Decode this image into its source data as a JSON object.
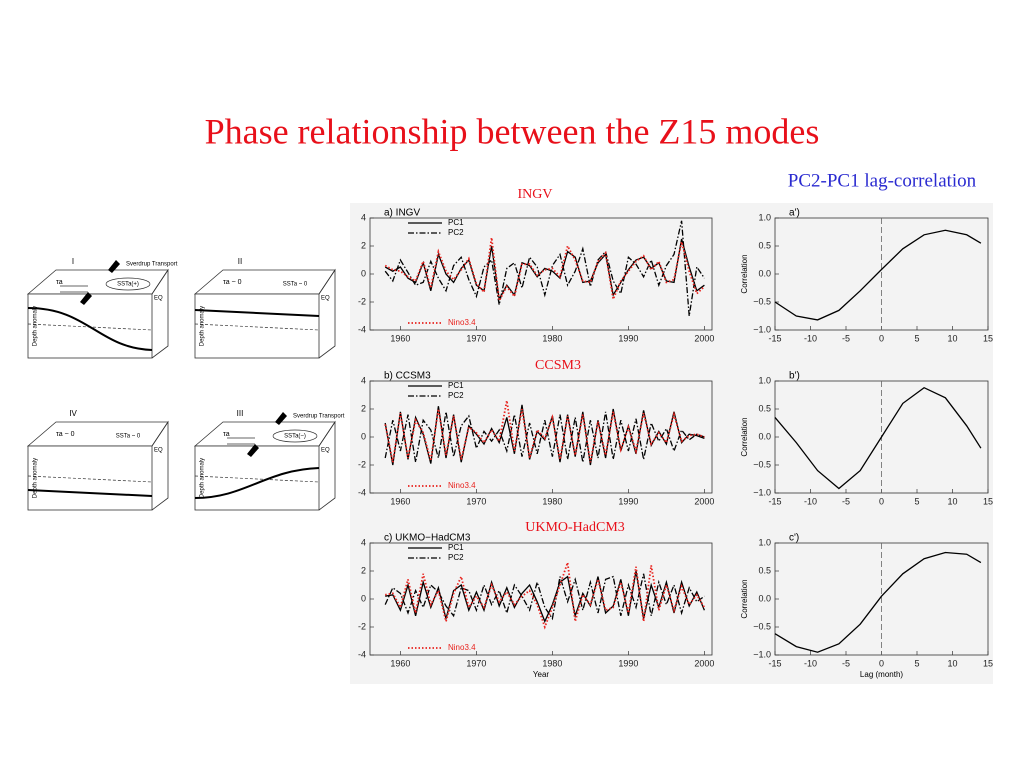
{
  "title": "Phase relationship between the Z15 modes",
  "subtitle": "PC2-PC1 lag-correlation",
  "models": [
    "INGV",
    "CCSM3",
    "UKMO-HadCM3"
  ],
  "diagrams": [
    {
      "label": "I",
      "wind": "τa",
      "sst": "SSTa(+)",
      "transport": "Sverdrup Transport",
      "eq": "EQ",
      "ylabel": "Depth anomaly"
    },
    {
      "label": "II",
      "wind": "τa ~ 0",
      "sst": "SSTa ~ 0",
      "eq": "EQ",
      "ylabel": "Depth anomaly"
    },
    {
      "label": "III",
      "wind": "τa",
      "sst": "SSTa(−)",
      "transport": "Sverdrup Transport",
      "eq": "EQ",
      "ylabel": "Depth anomaly"
    },
    {
      "label": "IV",
      "wind": "τa ~ 0",
      "sst": "SSTa ~ 0",
      "eq": "EQ",
      "ylabel": "Depth anomaly"
    }
  ],
  "chart_data": [
    {
      "type": "line",
      "title": "a) INGV",
      "xlim": [
        1956,
        2001
      ],
      "xticks": [
        1960,
        1970,
        1980,
        1990,
        2000
      ],
      "ylim": [
        -4,
        4
      ],
      "yticks": [
        -4,
        -2,
        0,
        2,
        4
      ],
      "x": [
        1958,
        1959,
        1960,
        1961,
        1962,
        1963,
        1964,
        1965,
        1966,
        1967,
        1968,
        1969,
        1970,
        1971,
        1972,
        1973,
        1974,
        1975,
        1976,
        1977,
        1978,
        1979,
        1980,
        1981,
        1982,
        1983,
        1984,
        1985,
        1986,
        1987,
        1988,
        1989,
        1990,
        1991,
        1992,
        1993,
        1994,
        1995,
        1996,
        1997,
        1998,
        1999,
        2000
      ],
      "series": [
        {
          "name": "PC1",
          "color": "#000000",
          "style": "solid",
          "values": [
            0.5,
            0.2,
            0.5,
            -0.3,
            -0.6,
            0.8,
            -1.2,
            1.4,
            0.0,
            -0.6,
            0.4,
            1.0,
            -0.8,
            -1.2,
            2.0,
            -1.8,
            -0.8,
            -1.5,
            0.8,
            0.6,
            -0.2,
            0.4,
            0.2,
            -0.3,
            1.6,
            1.2,
            -0.6,
            -0.5,
            0.8,
            1.4,
            -1.5,
            -0.6,
            0.3,
            1.0,
            1.2,
            0.4,
            0.8,
            -0.5,
            -0.6,
            2.5,
            0.5,
            -1.2,
            -0.8
          ]
        },
        {
          "name": "PC2",
          "color": "#000000",
          "style": "dashdot",
          "values": [
            0.2,
            -0.5,
            1.0,
            0.1,
            -0.8,
            -0.6,
            0.9,
            -0.3,
            -1.2,
            0.6,
            1.2,
            -0.4,
            -1.6,
            0.5,
            1.0,
            -2.2,
            0.4,
            0.8,
            -1.0,
            1.2,
            0.5,
            -1.5,
            0.6,
            1.4,
            -0.8,
            0.2,
            1.8,
            -0.9,
            1.0,
            1.6,
            -0.5,
            -1.4,
            1.2,
            0.7,
            -0.2,
            1.0,
            -0.8,
            0.6,
            1.4,
            3.8,
            -3.0,
            0.5,
            -0.3
          ]
        },
        {
          "name": "Nino3.4",
          "color": "#e8231e",
          "style": "dotted",
          "values": [
            0.6,
            0.3,
            0.2,
            -0.2,
            -0.5,
            0.9,
            -1.0,
            1.6,
            0.2,
            -0.4,
            0.3,
            1.1,
            -0.7,
            -1.3,
            2.6,
            -1.9,
            -0.9,
            -1.6,
            0.7,
            0.7,
            -0.1,
            0.3,
            0.4,
            -0.2,
            2.0,
            1.0,
            -0.5,
            -0.6,
            0.9,
            1.5,
            -1.8,
            -0.5,
            0.2,
            0.9,
            1.3,
            0.3,
            0.9,
            -0.6,
            -0.4,
            2.3,
            0.2,
            -1.4,
            -0.9
          ]
        }
      ]
    },
    {
      "type": "line",
      "title": "a')",
      "ylabel": "Correlation",
      "xlim": [
        -15,
        15
      ],
      "xticks": [
        -15,
        -10,
        -5,
        0,
        5,
        10,
        15
      ],
      "ylim": [
        -1,
        1
      ],
      "yticks": [
        {
          "value": -1,
          "label": "−1.0"
        },
        {
          "value": -0.5,
          "label": "−0.5"
        },
        {
          "value": 0,
          "label": "0.0"
        },
        0.5,
        {
          "value": 1,
          "label": "1.0"
        }
      ],
      "vline": 0,
      "x": [
        -15,
        -12,
        -9,
        -6,
        -3,
        0,
        3,
        6,
        9,
        12,
        14
      ],
      "series": [
        {
          "color": "#000000",
          "style": "solid",
          "values": [
            -0.5,
            -0.75,
            -0.82,
            -0.65,
            -0.3,
            0.08,
            0.45,
            0.7,
            0.78,
            0.7,
            0.55
          ]
        }
      ]
    },
    {
      "type": "line",
      "title": "b) CCSM3",
      "xlim": [
        1956,
        2001
      ],
      "xticks": [
        1960,
        1970,
        1980,
        1990,
        2000
      ],
      "ylim": [
        -4,
        4
      ],
      "yticks": [
        -4,
        -2,
        0,
        2,
        4
      ],
      "x": [
        1958,
        1959,
        1960,
        1961,
        1962,
        1963,
        1964,
        1965,
        1966,
        1967,
        1968,
        1969,
        1970,
        1971,
        1972,
        1973,
        1974,
        1975,
        1976,
        1977,
        1978,
        1979,
        1980,
        1981,
        1982,
        1983,
        1984,
        1985,
        1986,
        1987,
        1988,
        1989,
        1990,
        1991,
        1992,
        1993,
        1994,
        1995,
        1996,
        1997,
        1998,
        1999,
        2000
      ],
      "series": [
        {
          "name": "PC1",
          "color": "#000000",
          "style": "solid",
          "values": [
            1.0,
            -2.0,
            1.8,
            -1.6,
            1.4,
            0.2,
            -1.9,
            2.2,
            -1.5,
            1.6,
            -1.8,
            0.8,
            0.2,
            -0.5,
            0.6,
            -0.4,
            1.4,
            -1.2,
            2.3,
            -1.6,
            0.4,
            -0.2,
            1.5,
            -1.8,
            1.6,
            -1.4,
            1.8,
            -2.0,
            1.2,
            -1.5,
            2.0,
            -1.0,
            0.8,
            -1.2,
            1.9,
            -0.6,
            0.4,
            -0.5,
            1.8,
            -0.4,
            0.2,
            0.1,
            -0.1
          ]
        },
        {
          "name": "PC2",
          "color": "#000000",
          "style": "dashdot",
          "values": [
            -1.5,
            1.2,
            -1.0,
            1.6,
            -1.8,
            1.2,
            0.5,
            -1.5,
            1.8,
            -1.4,
            0.8,
            1.5,
            -0.8,
            0.4,
            -0.3,
            0.5,
            -1.0,
            1.6,
            -1.4,
            1.0,
            -1.2,
            1.2,
            -1.4,
            1.6,
            -1.6,
            1.4,
            -1.8,
            1.2,
            -1.5,
            1.8,
            -1.6,
            1.2,
            -1.0,
            1.3,
            -1.6,
            1.0,
            -0.3,
            0.6,
            -1.0,
            0.5,
            -0.2,
            0.2,
            0.0
          ]
        },
        {
          "name": "Nino3.4",
          "color": "#e8231e",
          "style": "dotted",
          "values": [
            0.9,
            -1.8,
            1.7,
            -1.5,
            1.2,
            0.3,
            -1.7,
            2.0,
            -1.3,
            1.5,
            -1.6,
            0.7,
            0.3,
            -0.4,
            0.5,
            -0.3,
            2.6,
            -1.0,
            2.0,
            -1.5,
            0.5,
            -0.1,
            1.4,
            -1.6,
            1.5,
            -1.3,
            1.6,
            -1.8,
            1.1,
            -1.3,
            1.8,
            -0.9,
            0.7,
            -1.0,
            1.7,
            -0.5,
            0.3,
            -0.4,
            1.6,
            -0.3,
            0.1,
            0.2,
            0.0
          ]
        }
      ]
    },
    {
      "type": "line",
      "title": "b')",
      "ylabel": "Correlation",
      "xlim": [
        -15,
        15
      ],
      "xticks": [
        -15,
        -10,
        -5,
        0,
        5,
        10,
        15
      ],
      "ylim": [
        -1,
        1
      ],
      "yticks": [
        {
          "value": -1,
          "label": "−1.0"
        },
        {
          "value": -0.5,
          "label": "−0.5"
        },
        {
          "value": 0,
          "label": "0.0"
        },
        0.5,
        {
          "value": 1,
          "label": "1.0"
        }
      ],
      "vline": 0,
      "x": [
        -15,
        -12,
        -9,
        -6,
        -3,
        0,
        3,
        6,
        9,
        12,
        14
      ],
      "series": [
        {
          "color": "#000000",
          "style": "solid",
          "values": [
            0.35,
            -0.1,
            -0.6,
            -0.92,
            -0.6,
            0.0,
            0.6,
            0.88,
            0.7,
            0.2,
            -0.2
          ]
        }
      ]
    },
    {
      "type": "line",
      "title": "c) UKMO−HadCM3",
      "xlabel": "Year",
      "xlim": [
        1956,
        2001
      ],
      "xticks": [
        1960,
        1970,
        1980,
        1990,
        2000
      ],
      "ylim": [
        -4,
        4
      ],
      "yticks": [
        -4,
        -2,
        0,
        2,
        4
      ],
      "x": [
        1958,
        1959,
        1960,
        1961,
        1962,
        1963,
        1964,
        1965,
        1966,
        1967,
        1968,
        1969,
        1970,
        1971,
        1972,
        1973,
        1974,
        1975,
        1976,
        1977,
        1978,
        1979,
        1980,
        1981,
        1982,
        1983,
        1984,
        1985,
        1986,
        1987,
        1988,
        1989,
        1990,
        1991,
        1992,
        1993,
        1994,
        1995,
        1996,
        1997,
        1998,
        1999,
        2000
      ],
      "series": [
        {
          "name": "PC1",
          "color": "#000000",
          "style": "solid",
          "values": [
            0.2,
            0.3,
            -0.8,
            1.0,
            -1.2,
            1.2,
            -0.6,
            0.8,
            -1.4,
            0.6,
            1.0,
            -0.8,
            0.5,
            -0.8,
            1.2,
            -0.5,
            0.8,
            -0.6,
            0.4,
            1.0,
            -0.2,
            -1.6,
            -0.4,
            1.2,
            1.6,
            -1.2,
            0.4,
            -0.5,
            1.6,
            -1.0,
            -0.5,
            1.4,
            -1.2,
            2.0,
            -1.4,
            1.0,
            -0.6,
            1.2,
            -1.0,
            1.2,
            -0.5,
            0.5,
            -0.8
          ]
        },
        {
          "name": "PC2",
          "color": "#000000",
          "style": "dashdot",
          "values": [
            -0.4,
            0.8,
            0.4,
            -1.0,
            0.6,
            -0.6,
            1.0,
            0.5,
            -0.5,
            -1.2,
            0.8,
            0.6,
            -0.8,
            1.0,
            -0.4,
            0.6,
            -1.0,
            1.0,
            0.2,
            -0.8,
            1.2,
            -0.6,
            -1.4,
            1.6,
            -0.2,
            1.4,
            -0.8,
            1.2,
            -1.0,
            1.4,
            1.6,
            -1.2,
            1.0,
            -0.6,
            1.8,
            -1.2,
            1.2,
            -0.4,
            1.0,
            -1.0,
            0.8,
            -0.2,
            0.2
          ]
        },
        {
          "name": "Nino3.4",
          "color": "#e8231e",
          "style": "dotted",
          "values": [
            0.3,
            0.4,
            -0.6,
            1.4,
            -1.0,
            1.8,
            -0.4,
            0.6,
            -1.6,
            0.4,
            1.6,
            -0.6,
            0.2,
            -0.6,
            1.0,
            -0.2,
            0.5,
            -0.4,
            0.2,
            0.6,
            -0.4,
            -2.0,
            -0.6,
            1.0,
            2.6,
            -1.6,
            0.3,
            -0.4,
            1.4,
            -0.8,
            -0.6,
            1.2,
            -1.0,
            2.3,
            -1.6,
            2.4,
            -0.8,
            1.0,
            -0.8,
            0.9,
            -0.4,
            0.3,
            -0.6
          ]
        }
      ]
    },
    {
      "type": "line",
      "title": "c')",
      "ylabel": "Correlation",
      "xlabel": "Lag (month)",
      "xlim": [
        -15,
        15
      ],
      "xticks": [
        -15,
        -10,
        -5,
        0,
        5,
        10,
        15
      ],
      "ylim": [
        -1,
        1
      ],
      "yticks": [
        {
          "value": -1,
          "label": "−1.0"
        },
        {
          "value": -0.5,
          "label": "−0.5"
        },
        {
          "value": 0,
          "label": "0.0"
        },
        0.5,
        {
          "value": 1,
          "label": "1.0"
        }
      ],
      "vline": 0,
      "x": [
        -15,
        -12,
        -9,
        -6,
        -3,
        0,
        3,
        6,
        9,
        12,
        14
      ],
      "series": [
        {
          "color": "#000000",
          "style": "solid",
          "values": [
            -0.62,
            -0.85,
            -0.95,
            -0.8,
            -0.45,
            0.05,
            0.45,
            0.72,
            0.83,
            0.8,
            0.65
          ]
        }
      ]
    }
  ]
}
